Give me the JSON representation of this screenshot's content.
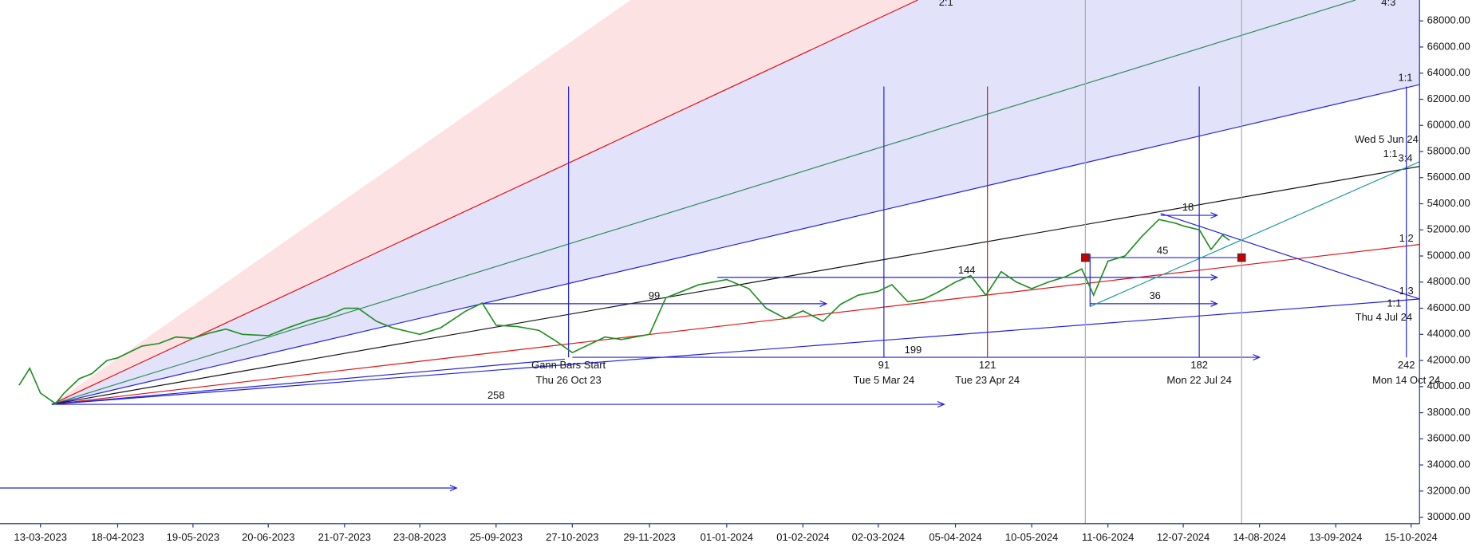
{
  "chart_data": {
    "type": "line",
    "series": [
      {
        "name": "Price",
        "color": "#1f8f1f",
        "x": [
          "03-03-2023",
          "08-03-2023",
          "13-03-2023",
          "20-03-2023",
          "24-03-2023",
          "31-03-2023",
          "06-04-2023",
          "13-04-2023",
          "18-04-2023",
          "28-04-2023",
          "05-05-2023",
          "12-05-2023",
          "19-05-2023",
          "26-05-2023",
          "02-06-2023",
          "09-06-2023",
          "20-06-2023",
          "28-06-2023",
          "07-07-2023",
          "14-07-2023",
          "21-07-2023",
          "27-07-2023",
          "04-08-2023",
          "11-08-2023",
          "23-08-2023",
          "01-09-2023",
          "12-09-2023",
          "19-09-2023",
          "25-09-2023",
          "04-10-2023",
          "13-10-2023",
          "20-10-2023",
          "27-10-2023",
          "03-11-2023",
          "10-11-2023",
          "17-11-2023",
          "29-11-2023",
          "06-12-2023",
          "13-12-2023",
          "20-12-2023",
          "01-01-2024",
          "10-01-2024",
          "17-01-2024",
          "25-01-2024",
          "01-02-2024",
          "09-02-2024",
          "16-02-2024",
          "23-02-2024",
          "02-03-2024",
          "08-03-2024",
          "15-03-2024",
          "22-03-2024",
          "28-03-2024",
          "05-04-2024",
          "12-04-2024",
          "19-04-2024",
          "26-04-2024",
          "03-05-2024",
          "10-05-2024",
          "17-05-2024",
          "24-05-2024",
          "31-05-2024",
          "05-06-2024",
          "11-06-2024",
          "18-06-2024",
          "25-06-2024",
          "02-07-2024",
          "09-07-2024",
          "12-07-2024",
          "19-07-2024",
          "24-07-2024",
          "29-07-2024",
          "01-08-2024"
        ],
        "values": [
          40100,
          41400,
          39500,
          38700,
          39500,
          40600,
          41000,
          42000,
          42200,
          43100,
          43300,
          43800,
          43700,
          44100,
          44400,
          44000,
          43900,
          44500,
          45100,
          45400,
          46000,
          46000,
          45000,
          44500,
          44000,
          44500,
          45800,
          46400,
          44700,
          44600,
          44300,
          43500,
          42600,
          43200,
          43800,
          43600,
          44000,
          46800,
          47300,
          47800,
          48200,
          47500,
          46000,
          45200,
          45800,
          45000,
          46300,
          47000,
          47300,
          47800,
          46500,
          46700,
          47200,
          48000,
          48500,
          47000,
          48800,
          48000,
          47500,
          48000,
          48400,
          49000,
          47000,
          49600,
          50000,
          51500,
          52800,
          52500,
          52300,
          52000,
          50500,
          51600,
          51200
        ]
      }
    ],
    "ylim": [
      29500,
      69600
    ],
    "yticks": [
      {
        "value": 30000,
        "label": "30000.00"
      },
      {
        "value": 32000,
        "label": "32000.00"
      },
      {
        "value": 34000,
        "label": "34000.00"
      },
      {
        "value": 36000,
        "label": "36000.00"
      },
      {
        "value": 38000,
        "label": "38000.00"
      },
      {
        "value": 40000,
        "label": "40000.00"
      },
      {
        "value": 42000,
        "label": "42000.00"
      },
      {
        "value": 44000,
        "label": "44000.00"
      },
      {
        "value": 46000,
        "label": "46000.00"
      },
      {
        "value": 48000,
        "label": "48000.00"
      },
      {
        "value": 50000,
        "label": "50000.00"
      },
      {
        "value": 52000,
        "label": "52000.00"
      },
      {
        "value": 54000,
        "label": "54000.00"
      },
      {
        "value": 56000,
        "label": "56000.00"
      },
      {
        "value": 58000,
        "label": "58000.00"
      },
      {
        "value": 60000,
        "label": "60000.00"
      },
      {
        "value": 62000,
        "label": "62000.00"
      },
      {
        "value": 64000,
        "label": "64000.00"
      },
      {
        "value": 66000,
        "label": "66000.00"
      },
      {
        "value": 68000,
        "label": "68000.00"
      }
    ],
    "xticks": [
      "13-03-2023",
      "18-04-2023",
      "19-05-2023",
      "20-06-2023",
      "21-07-2023",
      "23-08-2023",
      "25-09-2023",
      "27-10-2023",
      "29-11-2023",
      "01-01-2024",
      "01-02-2024",
      "02-03-2024",
      "05-04-2024",
      "10-05-2024",
      "11-06-2024",
      "12-07-2024",
      "14-08-2024",
      "13-09-2024",
      "15-10-2024"
    ],
    "annotations": [
      "2:1",
      "4:3",
      "1:1",
      "Wed 5 Jun 24",
      "1:1",
      "3:4",
      "1:2",
      "1:3",
      "1:1",
      "Thu 4 Jul 24",
      "18",
      "45",
      "144",
      "99",
      "36",
      "199",
      "Gann Bars Start",
      "Thu 26 Oct 23",
      "91",
      "Tue 5 Mar 24",
      "121",
      "Tue 23 Apr 24",
      "182",
      "Mon 22 Jul 24",
      "242",
      "Mon 14 Oct 24",
      "258"
    ]
  }
}
